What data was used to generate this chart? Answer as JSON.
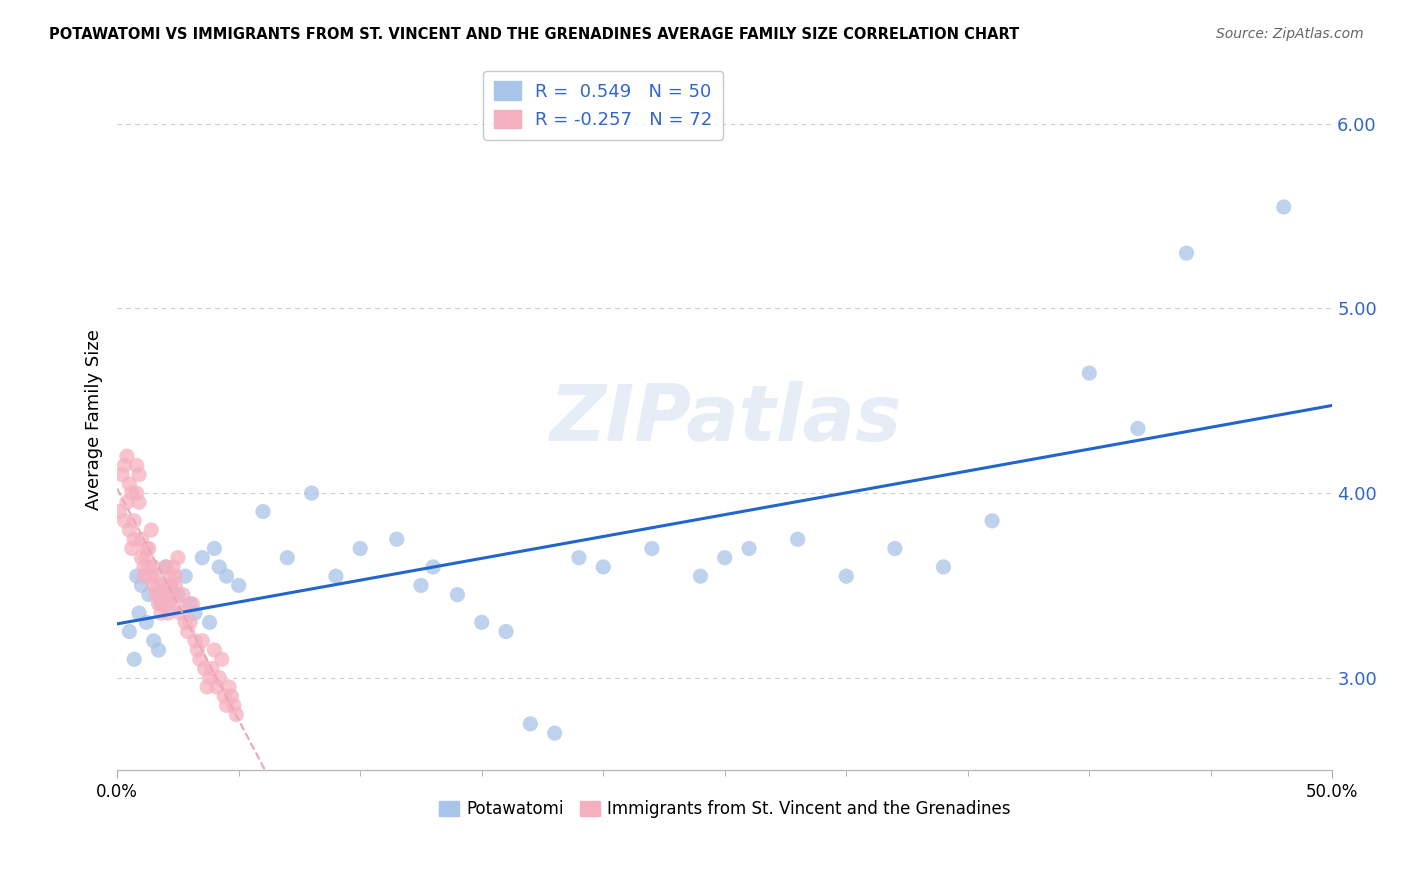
{
  "title": "POTAWATOMI VS IMMIGRANTS FROM ST. VINCENT AND THE GRENADINES AVERAGE FAMILY SIZE CORRELATION CHART",
  "source": "Source: ZipAtlas.com",
  "ylabel": "Average Family Size",
  "watermark": "ZIPatlas",
  "blue_R": 0.549,
  "blue_N": 50,
  "pink_R": -0.257,
  "pink_N": 72,
  "blue_color": "#a8c4e8",
  "pink_color": "#f5b0c0",
  "blue_line_color": "#2266cc",
  "pink_line_color": "#e8a8b8",
  "xlim": [
    0.0,
    0.5
  ],
  "ylim": [
    2.5,
    6.3
  ],
  "yticks": [
    3.0,
    4.0,
    5.0,
    6.0
  ],
  "xtick_major": [
    0.0,
    0.5
  ],
  "xtick_major_labels": [
    "0.0%",
    "50.0%"
  ],
  "xtick_minor": [
    0.05,
    0.1,
    0.15,
    0.2,
    0.25,
    0.3,
    0.35,
    0.4,
    0.45
  ],
  "blue_x": [
    0.005,
    0.007,
    0.008,
    0.009,
    0.01,
    0.012,
    0.013,
    0.015,
    0.017,
    0.018,
    0.02,
    0.022,
    0.025,
    0.028,
    0.03,
    0.032,
    0.035,
    0.038,
    0.04,
    0.042,
    0.045,
    0.05,
    0.06,
    0.07,
    0.08,
    0.09,
    0.1,
    0.115,
    0.125,
    0.13,
    0.14,
    0.15,
    0.16,
    0.17,
    0.18,
    0.19,
    0.2,
    0.22,
    0.24,
    0.25,
    0.26,
    0.28,
    0.3,
    0.32,
    0.34,
    0.36,
    0.4,
    0.42,
    0.44,
    0.48
  ],
  "blue_y": [
    3.25,
    3.1,
    3.55,
    3.35,
    3.5,
    3.3,
    3.45,
    3.2,
    3.15,
    3.4,
    3.6,
    3.5,
    3.45,
    3.55,
    3.4,
    3.35,
    3.65,
    3.3,
    3.7,
    3.6,
    3.55,
    3.5,
    3.9,
    3.65,
    4.0,
    3.55,
    3.7,
    3.75,
    3.5,
    3.6,
    3.45,
    3.3,
    3.25,
    2.75,
    2.7,
    3.65,
    3.6,
    3.7,
    3.55,
    3.65,
    3.7,
    3.75,
    3.55,
    3.7,
    3.6,
    3.85,
    4.65,
    4.35,
    5.3,
    5.55
  ],
  "pink_x": [
    0.001,
    0.002,
    0.003,
    0.003,
    0.004,
    0.004,
    0.005,
    0.005,
    0.006,
    0.006,
    0.007,
    0.007,
    0.008,
    0.008,
    0.009,
    0.009,
    0.01,
    0.01,
    0.011,
    0.011,
    0.012,
    0.012,
    0.013,
    0.013,
    0.014,
    0.014,
    0.015,
    0.015,
    0.016,
    0.016,
    0.017,
    0.017,
    0.018,
    0.018,
    0.019,
    0.019,
    0.02,
    0.02,
    0.021,
    0.021,
    0.022,
    0.022,
    0.023,
    0.023,
    0.024,
    0.024,
    0.025,
    0.025,
    0.026,
    0.027,
    0.028,
    0.029,
    0.03,
    0.031,
    0.032,
    0.033,
    0.034,
    0.035,
    0.036,
    0.037,
    0.038,
    0.039,
    0.04,
    0.041,
    0.042,
    0.043,
    0.044,
    0.045,
    0.046,
    0.047,
    0.048,
    0.049
  ],
  "pink_y": [
    3.9,
    4.1,
    3.85,
    4.15,
    3.95,
    4.2,
    4.05,
    3.8,
    3.7,
    4.0,
    3.75,
    3.85,
    4.15,
    4.0,
    3.95,
    4.1,
    3.65,
    3.75,
    3.6,
    3.55,
    3.7,
    3.65,
    3.6,
    3.7,
    3.8,
    3.55,
    3.5,
    3.6,
    3.45,
    3.55,
    3.5,
    3.4,
    3.45,
    3.35,
    3.4,
    3.5,
    3.6,
    3.45,
    3.35,
    3.4,
    3.55,
    3.5,
    3.45,
    3.6,
    3.55,
    3.5,
    3.65,
    3.4,
    3.35,
    3.45,
    3.3,
    3.25,
    3.3,
    3.4,
    3.2,
    3.15,
    3.1,
    3.2,
    3.05,
    2.95,
    3.0,
    3.05,
    3.15,
    2.95,
    3.0,
    3.1,
    2.9,
    2.85,
    2.95,
    2.9,
    2.85,
    2.8
  ]
}
